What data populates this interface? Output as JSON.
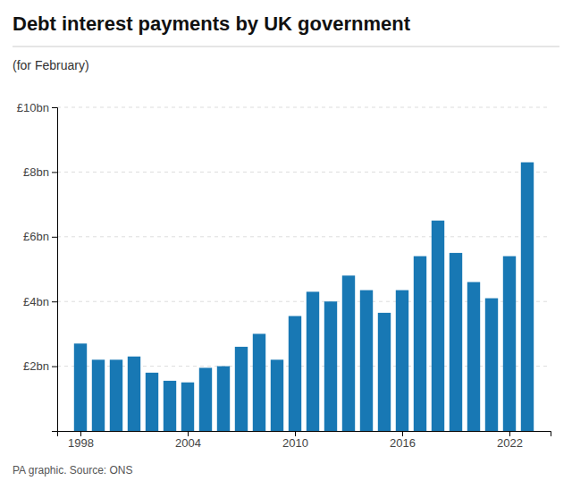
{
  "chart_data": {
    "type": "bar",
    "title": "Debt interest payments by UK government",
    "subtitle": "(for February)",
    "source": "PA graphic. Source: ONS",
    "x": [
      1998,
      1999,
      2000,
      2001,
      2002,
      2003,
      2004,
      2005,
      2006,
      2007,
      2008,
      2009,
      2010,
      2011,
      2012,
      2013,
      2014,
      2015,
      2016,
      2017,
      2018,
      2019,
      2020,
      2021,
      2022,
      2023
    ],
    "values": [
      2.7,
      2.2,
      2.2,
      2.3,
      1.8,
      1.55,
      1.5,
      1.95,
      2.0,
      2.6,
      3.0,
      2.2,
      3.55,
      4.3,
      4.0,
      4.8,
      4.35,
      3.65,
      4.35,
      5.4,
      6.5,
      5.5,
      4.6,
      4.1,
      5.4,
      8.3
    ],
    "color": "#1878b4",
    "xlim": [
      1996.7,
      2024.3
    ],
    "xticks": [
      1998,
      2004,
      2010,
      2016,
      2022
    ],
    "ylim": [
      0,
      10
    ],
    "yticks": [
      {
        "value": 2,
        "label": "£2bn"
      },
      {
        "value": 4,
        "label": "£4bn"
      },
      {
        "value": 6,
        "label": "£6bn"
      },
      {
        "value": 8,
        "label": "£8bn"
      },
      {
        "value": 10,
        "label": "£10bn"
      }
    ],
    "grid": true
  }
}
